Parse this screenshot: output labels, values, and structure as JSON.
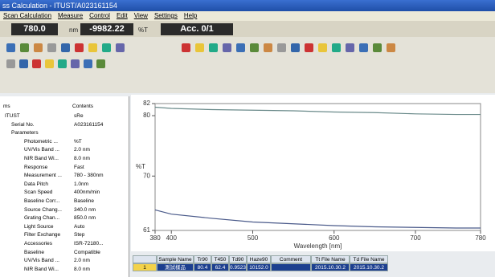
{
  "window": {
    "title": "ss Calculation - ITUST/A023161154"
  },
  "menu": [
    "Scan Calculation",
    "Measure",
    "Control",
    "Edit",
    "View",
    "Settings",
    "Help"
  ],
  "readout": {
    "wavelength": "780.0",
    "wavelength_unit": "nm",
    "value": "-9982.22",
    "value_unit": "%T",
    "acc": "Acc. 0/1"
  },
  "tree": {
    "headers": [
      "ms",
      "Contents"
    ],
    "rows": [
      {
        "name": "ITUST",
        "value": "sRe"
      },
      {
        "name": "Serial No.",
        "value": "A023161154"
      },
      {
        "name": "Parameters"
      },
      {
        "name": "Photometric ...",
        "value": "%T"
      },
      {
        "name": "UV/Vis Band ...",
        "value": "2.0 nm"
      },
      {
        "name": "NIR Band Wi...",
        "value": "8.0 nm"
      },
      {
        "name": "Response",
        "value": "Fast"
      },
      {
        "name": "Measurement ...",
        "value": "780 - 380nm"
      },
      {
        "name": "Data Pitch",
        "value": "1.0nm"
      },
      {
        "name": "Scan Speed",
        "value": "400nm/min"
      },
      {
        "name": "Baseline Corr...",
        "value": "Baseline"
      },
      {
        "name": "Source Chang...",
        "value": "340.0 nm"
      },
      {
        "name": "Grating Chan...",
        "value": "850.0 nm"
      },
      {
        "name": "Light Source",
        "value": "Auto"
      },
      {
        "name": "Filter Exchange",
        "value": "Step"
      },
      {
        "name": "Accessories",
        "value": "ISR-72180..."
      },
      {
        "name": "Baseline",
        "value": "Compatible"
      },
      {
        "name": "UV/Vis Band ...",
        "value": "2.0 nm"
      },
      {
        "name": "NIR Band Wi...",
        "value": "8.0 nm"
      }
    ]
  },
  "chart_data": {
    "type": "line",
    "y_label": "%T",
    "x_label": "Wavelength [nm]",
    "x": [
      380,
      400,
      450,
      500,
      550,
      600,
      650,
      700,
      750,
      780
    ],
    "series": [
      {
        "color": "#6a8a8a",
        "values": [
          81.4,
          81.2,
          81.0,
          80.9,
          80.8,
          80.6,
          80.5,
          80.3,
          80.2,
          80.2
        ]
      },
      {
        "color": "#4a5a8a",
        "values": [
          64.4,
          63.7,
          63.0,
          62.4,
          62.1,
          61.8,
          61.6,
          61.5,
          61.4,
          61.4
        ]
      }
    ],
    "xlim": [
      380,
      780
    ],
    "ylim": [
      61,
      82
    ],
    "xticks": [
      380,
      400,
      500,
      600,
      700,
      780
    ],
    "yticks": [
      61,
      70,
      80,
      82
    ]
  },
  "table": {
    "headers": [
      "Sample Name",
      "Tr90",
      "T450",
      "Td90",
      "Haze90",
      "Comment",
      "Tt File Name",
      "Td File Name"
    ],
    "rows": [
      [
        "1",
        "測試樣品",
        "80.4",
        "62.4",
        "0.9523",
        "10152.0",
        "2015.10.30.2",
        "2015.10.30.2"
      ]
    ]
  }
}
